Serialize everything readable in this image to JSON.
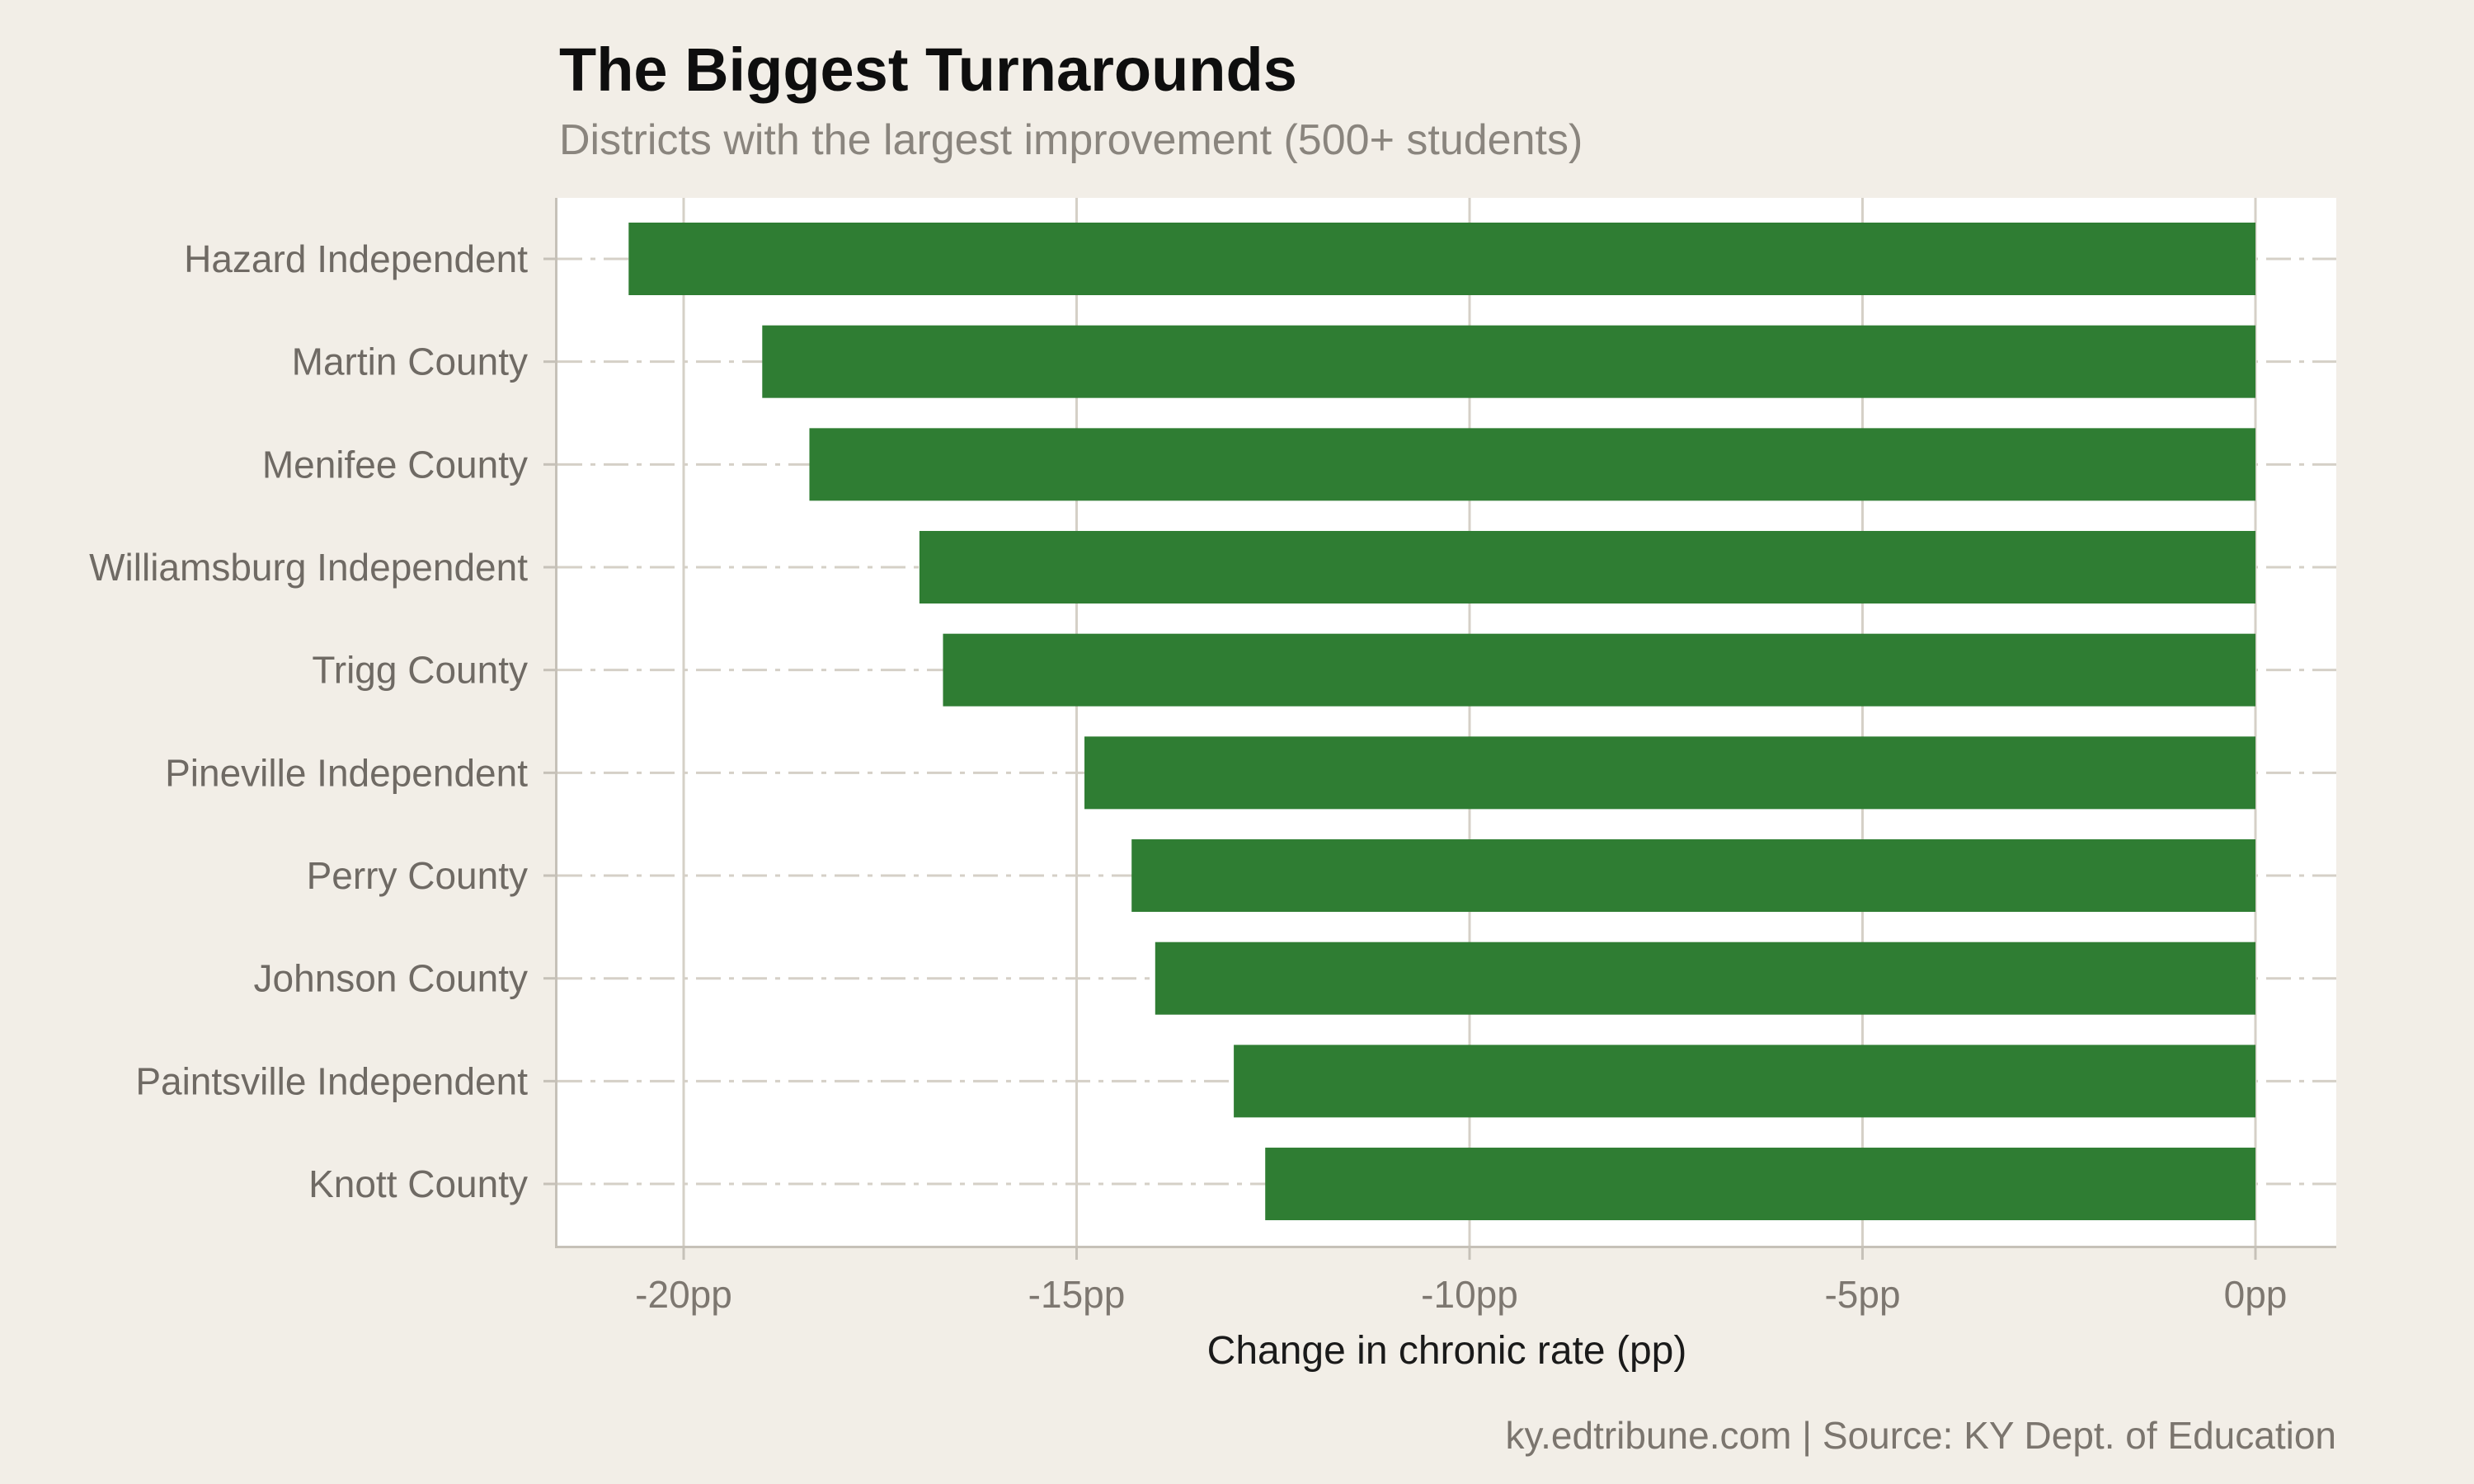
{
  "header": {
    "title": "The Biggest Turnarounds",
    "subtitle": "Districts with the largest improvement (500+ students)"
  },
  "caption": "ky.edtribune.com | Source: KY Dept. of Education",
  "chart_data": {
    "type": "bar",
    "orientation": "horizontal",
    "title": "The Biggest Turnarounds",
    "subtitle": "Districts with the largest improvement (500+ students)",
    "xlabel": "Change in chronic rate (pp)",
    "ylabel": "",
    "categories": [
      "Hazard Independent",
      "Martin County",
      "Menifee County",
      "Williamsburg Independent",
      "Trigg County",
      "Pineville Independent",
      "Perry County",
      "Johnson County",
      "Paintsville Independent",
      "Knott County"
    ],
    "values": [
      -20.7,
      -19.0,
      -18.4,
      -17.0,
      -16.7,
      -14.9,
      -14.3,
      -14.0,
      -13.0,
      -12.6
    ],
    "unit": "pp",
    "xlim": [
      -21.6,
      1.0
    ],
    "x_ticks": [
      -20,
      -15,
      -10,
      -5,
      0
    ],
    "x_tick_labels": [
      "-20pp",
      "-15pp",
      "-10pp",
      "-5pp",
      "0pp"
    ],
    "grid": true,
    "legend": false
  },
  "colors": {
    "background": "#f2eee7",
    "panel": "#ffffff",
    "bar": "#2f7d33",
    "gridline": "#d5d0c7",
    "axis": "#c6c1b8",
    "axis_title_text": "#1a1a1a",
    "category_label_text": "#6f6a64",
    "tick_label_text": "#7d7770",
    "title_text": "#0e0e0e",
    "subtitle_text": "#8a857e",
    "caption_text": "#7b756e"
  }
}
